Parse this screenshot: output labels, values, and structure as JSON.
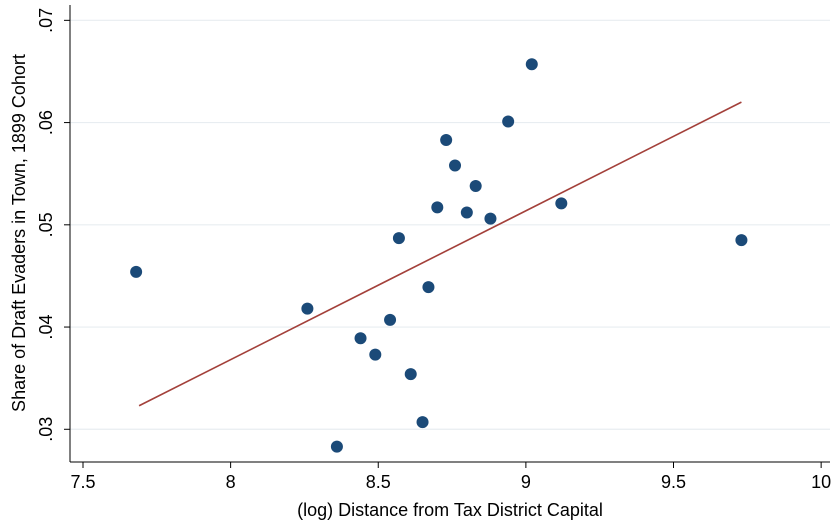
{
  "chart_data": {
    "type": "scatter",
    "x_label": "(log) Distance from Tax District Capital",
    "y_label": "Share of Draft Evaders in Town, 1899 Cohort",
    "x": [
      7.68,
      8.26,
      8.36,
      8.44,
      8.49,
      8.54,
      8.57,
      8.61,
      8.65,
      8.67,
      8.7,
      8.73,
      8.76,
      8.8,
      8.83,
      8.88,
      8.94,
      9.02,
      9.12,
      9.73
    ],
    "values": [
      0.0454,
      0.0418,
      0.0283,
      0.0389,
      0.0373,
      0.0407,
      0.0487,
      0.0354,
      0.0307,
      0.0439,
      0.0517,
      0.0583,
      0.0558,
      0.0512,
      0.0538,
      0.0506,
      0.0601,
      0.0657,
      0.0521,
      0.0485
    ],
    "color": "#1b4a78",
    "fit_line": {
      "x": [
        7.69,
        9.73
      ],
      "values": [
        0.0323,
        0.062
      ],
      "color": "#a3403a"
    },
    "xlim": [
      7.456,
      10.03
    ],
    "ylim": [
      0.0268,
      0.0715
    ],
    "xticks": [
      7.5,
      8,
      8.5,
      9,
      9.5,
      10
    ],
    "yticks": [
      {
        "value": 0.03,
        "label": ".03"
      },
      {
        "value": 0.04,
        "label": ".04"
      },
      {
        "value": 0.05,
        "label": ".05"
      },
      {
        "value": 0.06,
        "label": ".06"
      },
      {
        "value": 0.07,
        "label": ".07"
      }
    ],
    "grid": true
  }
}
